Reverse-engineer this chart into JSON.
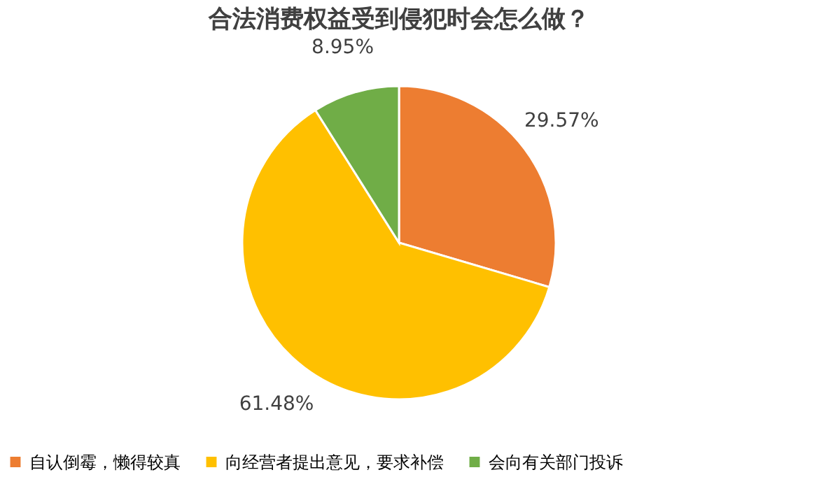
{
  "chart_data": {
    "type": "pie",
    "title": "合法消费权益受到侵犯时会怎么做？",
    "categories": [
      "自认倒霉，懒得较真",
      "向经营者提出意见，要求补偿",
      "会向有关部门投诉"
    ],
    "values": [
      29.57,
      61.48,
      8.95
    ],
    "colors": [
      "#ed7d31",
      "#ffc000",
      "#70ad47"
    ],
    "value_labels": [
      "29.57%",
      "61.48%",
      "8.95%"
    ],
    "legend": "bottom"
  }
}
